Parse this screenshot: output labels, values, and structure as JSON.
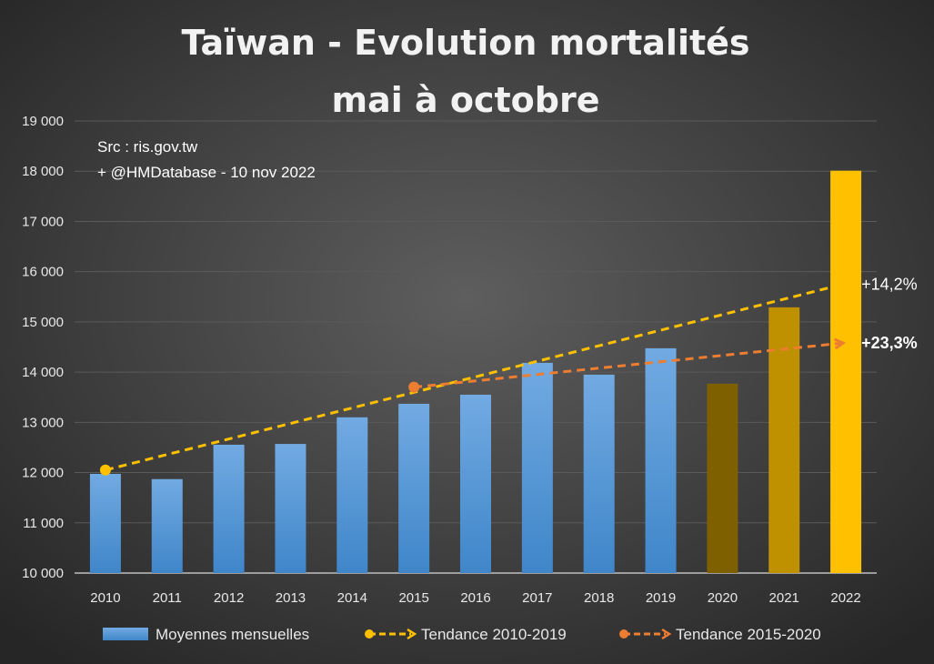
{
  "chart_data": {
    "type": "bar",
    "title": [
      "Taïwan - Evolution mortalités",
      "mai à octobre"
    ],
    "source": [
      "Src : ris.gov.tw",
      "+ @HMDatabase - 10 nov 2022"
    ],
    "categories": [
      "2010",
      "2011",
      "2012",
      "2013",
      "2014",
      "2015",
      "2016",
      "2017",
      "2018",
      "2019",
      "2020",
      "2021",
      "2022"
    ],
    "series": [
      {
        "name": "Moyennes mensuelles",
        "values": [
          11975,
          11870,
          12555,
          12570,
          13100,
          13370,
          13550,
          14185,
          13950,
          14475,
          13770,
          15290,
          18010
        ],
        "colors": [
          "#5b9bd5",
          "#5b9bd5",
          "#5b9bd5",
          "#5b9bd5",
          "#5b9bd5",
          "#5b9bd5",
          "#5b9bd5",
          "#5b9bd5",
          "#5b9bd5",
          "#5b9bd5",
          "#7f6000",
          "#bf9000",
          "#ffc000"
        ]
      }
    ],
    "trends": [
      {
        "name": "Tendance 2010-2019",
        "from": [
          "2010",
          12050
        ],
        "to": [
          "2022",
          15750
        ],
        "label": "+14,2%",
        "color": "#ffc000",
        "bold": false
      },
      {
        "name": "Tendance 2015-2020",
        "from": [
          "2015",
          13700
        ],
        "to": [
          "2022",
          14580
        ],
        "label": "+23,3%",
        "color": "#ed7d31",
        "bold": true
      }
    ],
    "ylim": [
      10000,
      19000
    ],
    "yticks": [
      10000,
      11000,
      12000,
      13000,
      14000,
      15000,
      16000,
      17000,
      18000,
      19000
    ],
    "ytick_labels": [
      "10 000",
      "11 000",
      "12 000",
      "13 000",
      "14 000",
      "15 000",
      "16 000",
      "17 000",
      "18 000",
      "19 000"
    ],
    "grid": true,
    "legend": "bottom"
  }
}
